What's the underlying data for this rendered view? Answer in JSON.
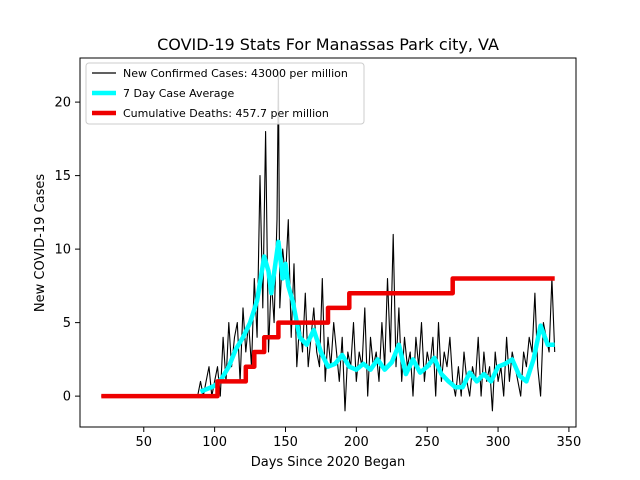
{
  "chart_data": {
    "type": "line",
    "title": "COVID-19 Stats For Manassas Park city, VA",
    "xlabel": "Days Since 2020 Began",
    "ylabel": "New COVID-19 Cases",
    "xlim": [
      5,
      355
    ],
    "ylim": [
      -2.1,
      23
    ],
    "xticks": [
      50,
      100,
      150,
      200,
      250,
      300,
      350
    ],
    "yticks": [
      0,
      5,
      10,
      15,
      20
    ],
    "grid": false,
    "legend_position": "upper-left",
    "series": [
      {
        "name": "New Confirmed Cases: 43000 per million",
        "color": "#000000",
        "style": "thin",
        "x": [
          20,
          40,
          60,
          80,
          88,
          90,
          92,
          94,
          96,
          98,
          100,
          102,
          104,
          106,
          108,
          110,
          112,
          114,
          116,
          118,
          120,
          122,
          124,
          126,
          128,
          130,
          132,
          134,
          136,
          138,
          140,
          142,
          144,
          145,
          146,
          148,
          150,
          152,
          154,
          156,
          158,
          160,
          162,
          164,
          166,
          168,
          170,
          172,
          174,
          176,
          178,
          180,
          182,
          184,
          186,
          188,
          190,
          192,
          194,
          196,
          198,
          200,
          202,
          204,
          206,
          208,
          210,
          212,
          214,
          216,
          218,
          220,
          222,
          224,
          226,
          228,
          230,
          232,
          234,
          236,
          238,
          240,
          242,
          244,
          246,
          248,
          250,
          252,
          254,
          256,
          258,
          260,
          262,
          264,
          266,
          268,
          270,
          272,
          274,
          276,
          278,
          280,
          282,
          284,
          286,
          288,
          290,
          292,
          294,
          296,
          298,
          300,
          302,
          304,
          306,
          308,
          310,
          312,
          314,
          316,
          318,
          320,
          322,
          324,
          326,
          328,
          330,
          332,
          334,
          336,
          338,
          340
        ],
        "y": [
          0,
          0,
          0,
          0,
          0,
          1,
          0,
          1,
          2,
          0,
          1,
          2,
          0,
          4,
          1,
          5,
          2,
          4,
          5,
          1,
          6,
          3,
          5,
          2,
          8,
          4,
          15,
          6,
          18,
          3,
          8,
          5,
          12,
          22,
          6,
          10,
          8,
          12,
          4,
          9,
          2,
          5,
          3,
          7,
          2,
          4,
          6,
          3,
          2,
          8,
          1,
          4,
          2,
          5,
          3,
          1,
          4,
          -1,
          3,
          2,
          5,
          1,
          3,
          2,
          6,
          0,
          4,
          2,
          3,
          1,
          5,
          2,
          8,
          3,
          11,
          2,
          6,
          1,
          4,
          2,
          3,
          0,
          4,
          2,
          5,
          1,
          3,
          2,
          4,
          0,
          5,
          1,
          3,
          2,
          4,
          1,
          0,
          2,
          0,
          3,
          1,
          0,
          2,
          1,
          4,
          0,
          3,
          1,
          2,
          -1,
          3,
          1,
          2,
          0,
          4,
          1,
          3,
          2,
          1,
          0,
          3,
          2,
          4,
          3,
          7,
          2,
          0,
          5,
          4,
          3,
          8,
          3
        ],
        "note": "values partially estimated from a dense daily line"
      },
      {
        "name": "7 Day Case Average",
        "color": "#00ffff",
        "style": "thick",
        "x": [
          90,
          95,
          100,
          105,
          110,
          115,
          120,
          125,
          130,
          135,
          138,
          140,
          145,
          148,
          150,
          152,
          155,
          160,
          165,
          170,
          175,
          180,
          185,
          190,
          195,
          200,
          205,
          210,
          215,
          220,
          225,
          230,
          235,
          240,
          245,
          250,
          255,
          260,
          265,
          270,
          275,
          280,
          285,
          290,
          295,
          300,
          305,
          310,
          315,
          320,
          325,
          330,
          335,
          340
        ],
        "y": [
          0.3,
          0.5,
          0.7,
          1.2,
          2.0,
          3.2,
          4.0,
          5.0,
          6.5,
          9.5,
          8.5,
          7.0,
          10.5,
          8.0,
          9.0,
          7.5,
          6.5,
          4.0,
          3.5,
          4.5,
          3.0,
          2.0,
          2.2,
          2.8,
          2.0,
          1.8,
          2.2,
          1.8,
          2.5,
          1.8,
          2.3,
          3.5,
          1.5,
          2.5,
          1.6,
          2.0,
          2.6,
          1.5,
          1.0,
          0.6,
          0.6,
          1.6,
          1.0,
          1.5,
          1.0,
          2.0,
          2.2,
          2.5,
          1.4,
          1.0,
          2.5,
          4.8,
          3.5,
          3.5
        ]
      },
      {
        "name": "Cumulative Deaths: 457.7 per million",
        "color": "#ee0000",
        "style": "thick",
        "x": [
          20,
          102,
          102,
          122,
          122,
          128,
          128,
          135,
          135,
          143,
          143,
          145,
          145,
          160,
          160,
          180,
          180,
          195,
          195,
          268,
          268,
          340
        ],
        "y": [
          0,
          0,
          1,
          1,
          2,
          2,
          3,
          3,
          4,
          4,
          4,
          4,
          5,
          5,
          5,
          5,
          6,
          6,
          7,
          7,
          8,
          8
        ]
      }
    ]
  }
}
